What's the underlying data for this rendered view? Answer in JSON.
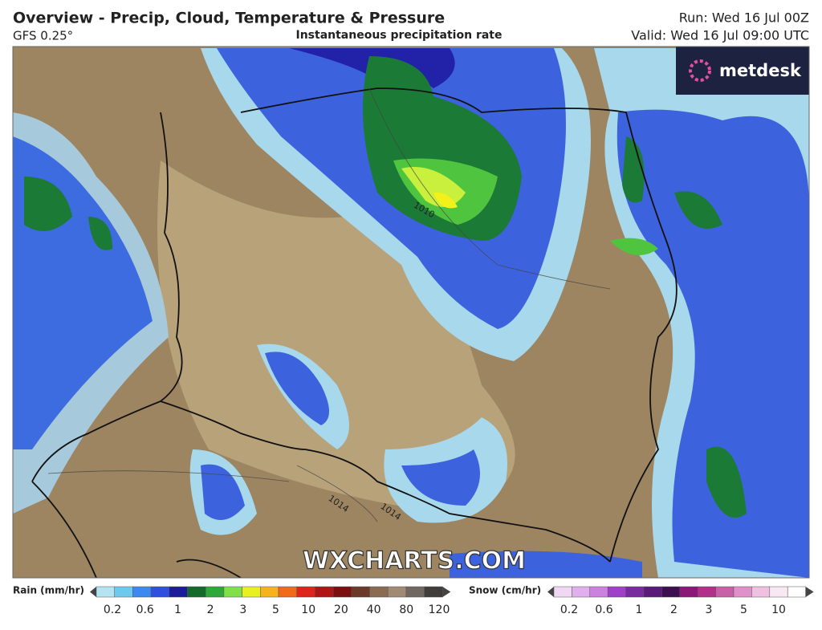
{
  "header": {
    "title": "Overview - Precip, Cloud, Temperature & Pressure",
    "model": "GFS 0.25°",
    "subtitle": "Instantaneous precipitation rate",
    "run": "Run: Wed 16 Jul 00Z",
    "valid": "Valid: Wed 16 Jul 09:00 UTC"
  },
  "map": {
    "logo": "metdesk",
    "watermark": "WXCHARTS.COM",
    "isobars": [
      "1010",
      "1014",
      "1014"
    ]
  },
  "legend": {
    "rain": {
      "label": "Rain (mm/hr)",
      "ticks": [
        "0.2",
        "0.6",
        "1",
        "2",
        "3",
        "5",
        "10",
        "20",
        "40",
        "80",
        "120"
      ]
    },
    "snow": {
      "label": "Snow (cm/hr)",
      "ticks": [
        "0.2",
        "0.6",
        "1",
        "2",
        "3",
        "5",
        "10"
      ]
    }
  }
}
